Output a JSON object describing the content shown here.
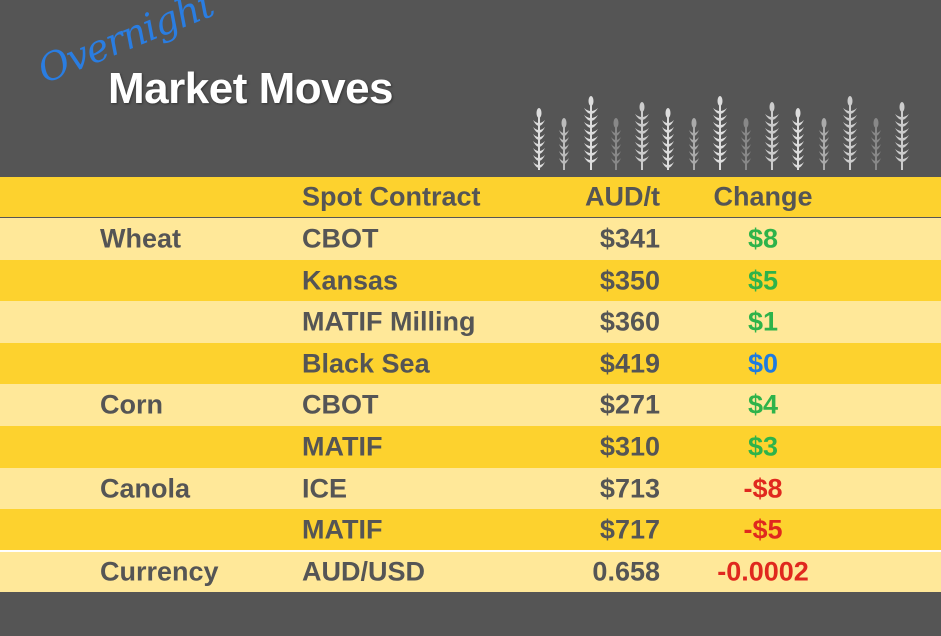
{
  "header": {
    "script_word": "Overnight",
    "title": "Market Moves",
    "decoration": "wheat-stalks-icon"
  },
  "colors": {
    "background": "#555555",
    "header_row": "#FDD22E",
    "row_light": "#FFE899",
    "row_dark": "#FDD22E",
    "text": "#555555",
    "positive": "#2EB34A",
    "zero": "#1E7BE0",
    "negative": "#E0281E",
    "script": "#2A7DE1"
  },
  "table": {
    "columns": [
      "",
      "Spot Contract",
      "AUD/t",
      "Change"
    ],
    "rows": [
      {
        "commodity": "Wheat",
        "contract": "CBOT",
        "price": "$341",
        "change": "$8",
        "trend": "positive"
      },
      {
        "commodity": "",
        "contract": "Kansas",
        "price": "$350",
        "change": "$5",
        "trend": "positive"
      },
      {
        "commodity": "",
        "contract": "MATIF Milling",
        "price": "$360",
        "change": "$1",
        "trend": "positive"
      },
      {
        "commodity": "",
        "contract": "Black Sea",
        "price": "$419",
        "change": "$0",
        "trend": "zero"
      },
      {
        "commodity": "Corn",
        "contract": "CBOT",
        "price": "$271",
        "change": "$4",
        "trend": "positive"
      },
      {
        "commodity": "",
        "contract": "MATIF",
        "price": "$310",
        "change": "$3",
        "trend": "positive"
      },
      {
        "commodity": "Canola",
        "contract": "ICE",
        "price": "$713",
        "change": "-$8",
        "trend": "negative"
      },
      {
        "commodity": "",
        "contract": "MATIF",
        "price": "$717",
        "change": "-$5",
        "trend": "negative"
      },
      {
        "commodity": "Currency",
        "contract": "AUD/USD",
        "price": "0.658",
        "change": "-0.0002",
        "trend": "negative"
      }
    ]
  }
}
